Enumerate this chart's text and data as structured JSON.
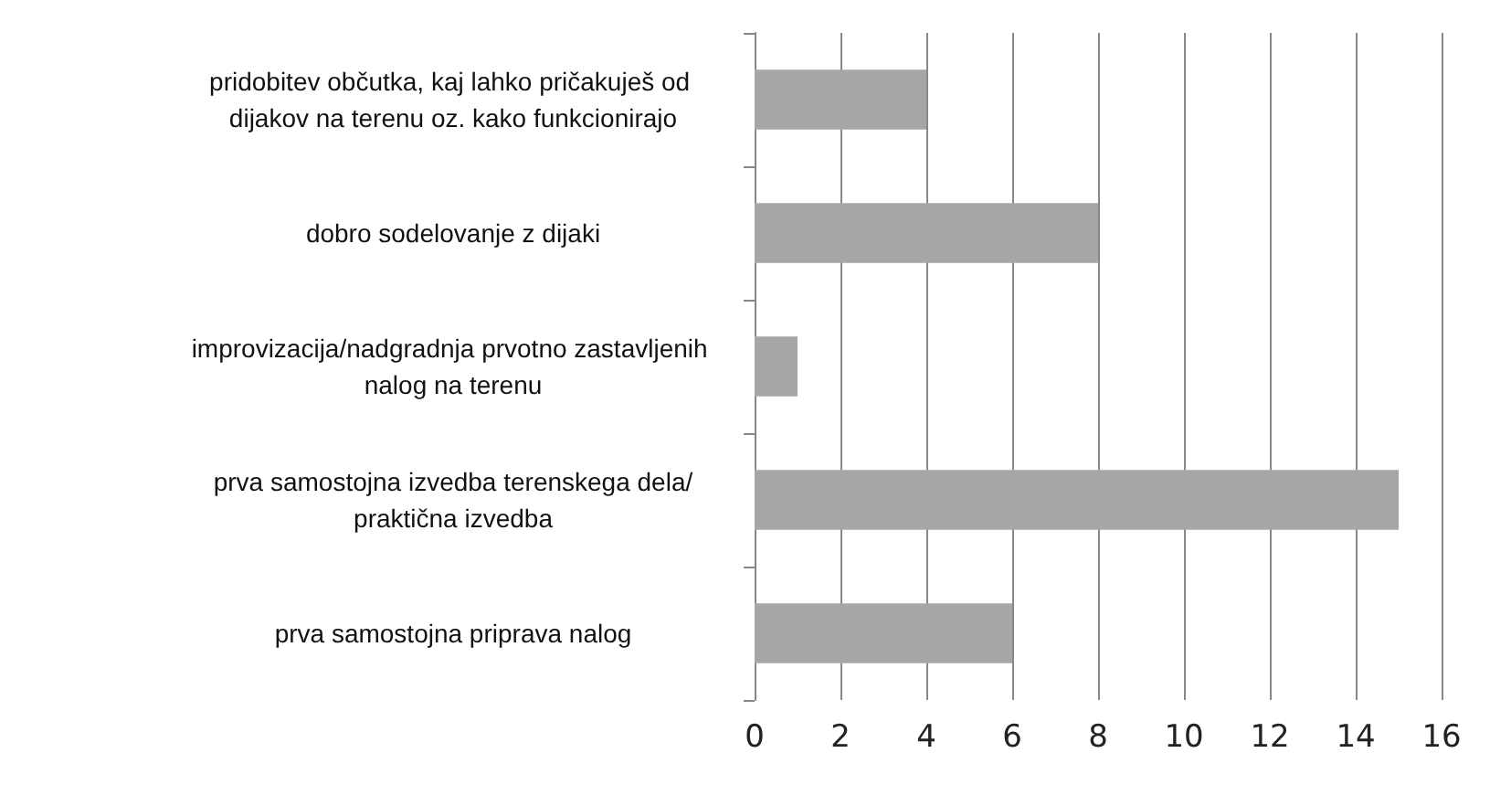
{
  "chart_data": {
    "type": "bar",
    "orientation": "horizontal",
    "categories": [
      "pridobitev občutka, kaj lahko pričakuješ od dijakov na terenu oz. kako funkcionirajo",
      "dobro sodelovanje z dijaki",
      "improvizacija/nadgradnja prvotno zastavljenih nalog na terenu",
      "prva samostojna izvedba terenskega dela/praktična izvedba",
      "prva samostojna priprava nalog"
    ],
    "values": [
      4,
      8,
      1,
      15,
      6
    ],
    "color": "#a6a6a6",
    "xlim": [
      0,
      16
    ],
    "xticks": [
      0,
      2,
      4,
      6,
      8,
      10,
      12,
      14,
      16
    ],
    "grid": "x"
  }
}
